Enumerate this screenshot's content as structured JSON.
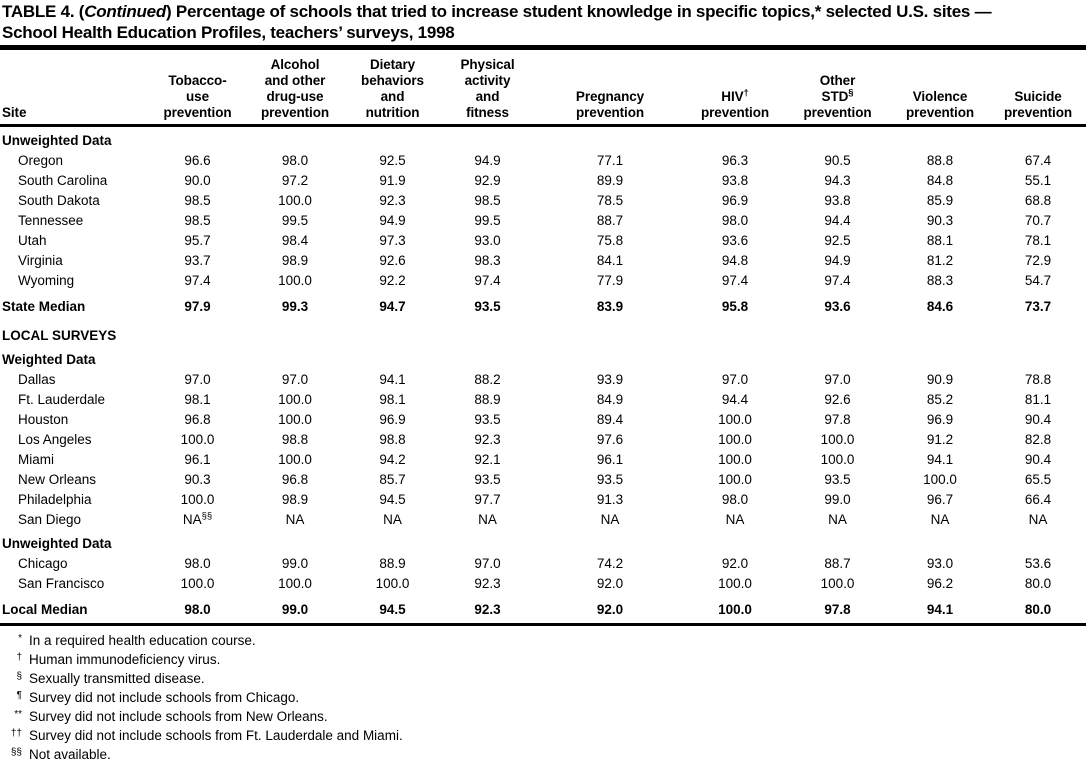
{
  "title": {
    "prefix": "TABLE 4. (",
    "italic": "Continued",
    "suffix_line1": ") Percentage of schools that tried to increase student knowledge in specific topics,* selected U.S. sites —",
    "line2": "School Health Education Profiles, teachers’ surveys, 1998"
  },
  "table": {
    "columns": [
      {
        "id": "site",
        "lines": [
          "Site"
        ]
      },
      {
        "id": "tobacco",
        "lines": [
          "Tobacco-",
          "use",
          "prevention"
        ]
      },
      {
        "id": "alcohol",
        "lines": [
          "Alcohol",
          "and other",
          "drug-use",
          "prevention"
        ]
      },
      {
        "id": "dietary",
        "lines": [
          "Dietary",
          "behaviors",
          "and",
          "nutrition"
        ]
      },
      {
        "id": "physical",
        "lines": [
          "Physical",
          "activity",
          "and",
          "fitness"
        ]
      },
      {
        "id": "pregnancy",
        "lines": [
          "Pregnancy",
          "prevention"
        ]
      },
      {
        "id": "hiv",
        "lines": [
          "HIV|†",
          "prevention"
        ]
      },
      {
        "id": "other-std",
        "lines": [
          "Other",
          "STD|§",
          "prevention"
        ]
      },
      {
        "id": "violence",
        "lines": [
          "Violence",
          "prevention"
        ]
      },
      {
        "id": "suicide",
        "lines": [
          "Suicide",
          "prevention"
        ]
      }
    ],
    "body": [
      {
        "type": "subhead",
        "label": "Unweighted Data"
      },
      {
        "type": "row",
        "site": "Oregon",
        "values": [
          "96.6",
          "98.0",
          "92.5",
          "94.9",
          "77.1",
          "96.3",
          "90.5",
          "88.8",
          "67.4"
        ]
      },
      {
        "type": "row",
        "site": "South Carolina",
        "values": [
          "90.0",
          "97.2",
          "91.9",
          "92.9",
          "89.9",
          "93.8",
          "94.3",
          "84.8",
          "55.1"
        ]
      },
      {
        "type": "row",
        "site": "South Dakota",
        "values": [
          "98.5",
          "100.0",
          "92.3",
          "98.5",
          "78.5",
          "96.9",
          "93.8",
          "85.9",
          "68.8"
        ]
      },
      {
        "type": "row",
        "site": "Tennessee",
        "values": [
          "98.5",
          "99.5",
          "94.9",
          "99.5",
          "88.7",
          "98.0",
          "94.4",
          "90.3",
          "70.7"
        ]
      },
      {
        "type": "row",
        "site": "Utah",
        "values": [
          "95.7",
          "98.4",
          "97.3",
          "93.0",
          "75.8",
          "93.6",
          "92.5",
          "88.1",
          "78.1"
        ]
      },
      {
        "type": "row",
        "site": "Virginia",
        "values": [
          "93.7",
          "98.9",
          "92.6",
          "98.3",
          "84.1",
          "94.8",
          "94.9",
          "81.2",
          "72.9"
        ]
      },
      {
        "type": "row",
        "site": "Wyoming",
        "values": [
          "97.4",
          "100.0",
          "92.2",
          "97.4",
          "77.9",
          "97.4",
          "97.4",
          "88.3",
          "54.7"
        ]
      },
      {
        "type": "median",
        "site": "State Median",
        "values": [
          "97.9",
          "99.3",
          "94.7",
          "93.5",
          "83.9",
          "95.8",
          "93.6",
          "84.6",
          "73.7"
        ]
      },
      {
        "type": "section",
        "label": "LOCAL SURVEYS"
      },
      {
        "type": "subhead",
        "label": "Weighted Data"
      },
      {
        "type": "row",
        "site": "Dallas",
        "values": [
          "97.0",
          "97.0",
          "94.1",
          "88.2",
          "93.9",
          "97.0",
          "97.0",
          "90.9",
          "78.8"
        ]
      },
      {
        "type": "row",
        "site": "Ft. Lauderdale",
        "values": [
          "98.1",
          "100.0",
          "98.1",
          "88.9",
          "84.9",
          "94.4",
          "92.6",
          "85.2",
          "81.1"
        ]
      },
      {
        "type": "row",
        "site": "Houston",
        "values": [
          "96.8",
          "100.0",
          "96.9",
          "93.5",
          "89.4",
          "100.0",
          "97.8",
          "96.9",
          "90.4"
        ]
      },
      {
        "type": "row",
        "site": "Los Angeles",
        "values": [
          "100.0",
          "98.8",
          "98.8",
          "92.3",
          "97.6",
          "100.0",
          "100.0",
          "91.2",
          "82.8"
        ]
      },
      {
        "type": "row",
        "site": "Miami",
        "values": [
          "96.1",
          "100.0",
          "94.2",
          "92.1",
          "96.1",
          "100.0",
          "100.0",
          "94.1",
          "90.4"
        ]
      },
      {
        "type": "row",
        "site": "New Orleans",
        "values": [
          "90.3",
          "96.8",
          "85.7",
          "93.5",
          "93.5",
          "100.0",
          "93.5",
          "100.0",
          "65.5"
        ]
      },
      {
        "type": "row",
        "site": "Philadelphia",
        "values": [
          "100.0",
          "98.9",
          "94.5",
          "97.7",
          "91.3",
          "98.0",
          "99.0",
          "96.7",
          "66.4"
        ]
      },
      {
        "type": "row",
        "site": "San Diego",
        "values": [
          "NA|§§",
          "NA",
          "NA",
          "NA",
          "NA",
          "NA",
          "NA",
          "NA",
          "NA"
        ]
      },
      {
        "type": "subhead",
        "label": "Unweighted Data"
      },
      {
        "type": "row",
        "site": "Chicago",
        "values": [
          "98.0",
          "99.0",
          "88.9",
          "97.0",
          "74.2",
          "92.0",
          "88.7",
          "93.0",
          "53.6"
        ]
      },
      {
        "type": "row",
        "site": "San Francisco",
        "values": [
          "100.0",
          "100.0",
          "100.0",
          "92.3",
          "92.0",
          "100.0",
          "100.0",
          "96.2",
          "80.0"
        ]
      },
      {
        "type": "median",
        "site": "Local Median",
        "values": [
          "98.0",
          "99.0",
          "94.5",
          "92.3",
          "92.0",
          "100.0",
          "97.8",
          "94.1",
          "80.0"
        ]
      }
    ]
  },
  "footnotes": [
    {
      "marker": "*",
      "text": "In a required health education course."
    },
    {
      "marker": "†",
      "text": "Human immunodeficiency virus."
    },
    {
      "marker": "§",
      "text": "Sexually transmitted disease."
    },
    {
      "marker": "¶",
      "text": "Survey did not include schools from Chicago."
    },
    {
      "marker": "**",
      "text": "Survey did not include schools from New Orleans."
    },
    {
      "marker": "††",
      "text": "Survey did not include schools from Ft. Lauderdale and Miami."
    },
    {
      "marker": "§§",
      "text": "Not available."
    }
  ]
}
